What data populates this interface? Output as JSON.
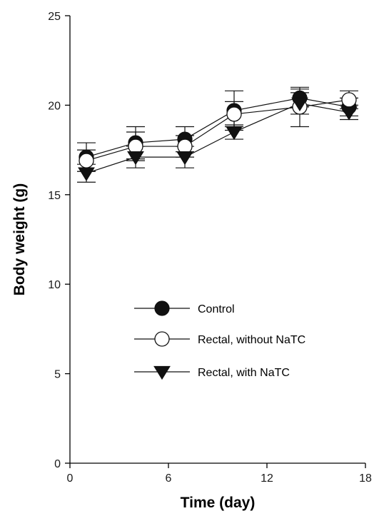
{
  "chart_data": {
    "type": "line",
    "title": "",
    "xlabel": "Time (day)",
    "ylabel": "Body weight (g)",
    "xlim": [
      0,
      18
    ],
    "ylim": [
      0,
      25
    ],
    "xticks": [
      0,
      6,
      12,
      18
    ],
    "yticks": [
      0,
      5,
      10,
      15,
      20,
      25
    ],
    "x": [
      1,
      4,
      7,
      10,
      14,
      17
    ],
    "grid": false,
    "legend_position": "center",
    "series": [
      {
        "name": "Control",
        "marker": "filled-circle",
        "values": [
          17.1,
          17.9,
          18.1,
          19.7,
          20.4,
          19.9
        ],
        "errors": [
          0.8,
          0.9,
          0.7,
          1.1,
          0.5,
          0.5
        ]
      },
      {
        "name": "Rectal, without NaTC",
        "marker": "open-circle",
        "values": [
          16.9,
          17.7,
          17.7,
          19.5,
          19.9,
          20.3
        ],
        "errors": [
          0.6,
          0.8,
          0.6,
          0.7,
          1.1,
          0.5
        ]
      },
      {
        "name": "Rectal, with NaTC",
        "marker": "filled-triangle-down",
        "values": [
          16.2,
          17.1,
          17.1,
          18.5,
          20.1,
          19.6
        ],
        "errors": [
          0.5,
          0.6,
          0.6,
          0.4,
          0.6,
          0.4
        ]
      }
    ],
    "colors": {
      "marker_fill": "#111111",
      "line": "#111111",
      "open_fill": "#ffffff"
    }
  }
}
